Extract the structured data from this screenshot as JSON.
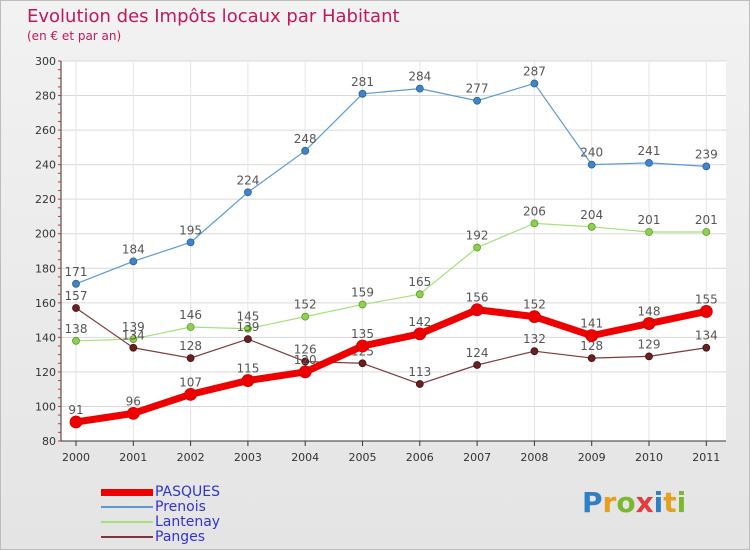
{
  "header": {
    "title": "Evolution des Impôts locaux par Habitant",
    "subtitle": "(en € et par an)"
  },
  "brand": {
    "text": "Proxiti",
    "letter_colors": [
      "#2f7fc8",
      "#e6a020",
      "#7cb82f",
      "#e23c3c",
      "#2f7fc8",
      "#e6a020",
      "#7cb82f"
    ]
  },
  "chart_data": {
    "type": "line",
    "title": "Evolution des Impôts locaux par Habitant",
    "subtitle": "(en € et par an)",
    "xlabel": "",
    "ylabel": "",
    "ylim": [
      80,
      300
    ],
    "yticks": [
      "80",
      "100",
      "120",
      "140",
      "160",
      "180",
      "200",
      "220",
      "240",
      "260",
      "280",
      "300"
    ],
    "categories": [
      "2000",
      "2001",
      "2002",
      "2003",
      "2004",
      "2005",
      "2006",
      "2007",
      "2008",
      "2009",
      "2010",
      "2011"
    ],
    "grid": true,
    "legend_position": "bottom-left",
    "series": [
      {
        "name": "PASQUES",
        "color": "#ee0000",
        "values": [
          91,
          96,
          107,
          115,
          120,
          135,
          142,
          156,
          152,
          141,
          148,
          155
        ]
      },
      {
        "name": "Prenois",
        "color": "#5b9bd5",
        "values": [
          171,
          184,
          195,
          224,
          248,
          281,
          284,
          277,
          287,
          240,
          241,
          239
        ]
      },
      {
        "name": "Lantenay",
        "color": "#a6e07a",
        "values": [
          138,
          139,
          146,
          145,
          152,
          159,
          165,
          192,
          206,
          204,
          201,
          201
        ]
      },
      {
        "name": "Panges",
        "color": "#7a3a3a",
        "values": [
          157,
          134,
          128,
          139,
          126,
          125,
          113,
          124,
          132,
          128,
          129,
          134
        ]
      }
    ]
  }
}
